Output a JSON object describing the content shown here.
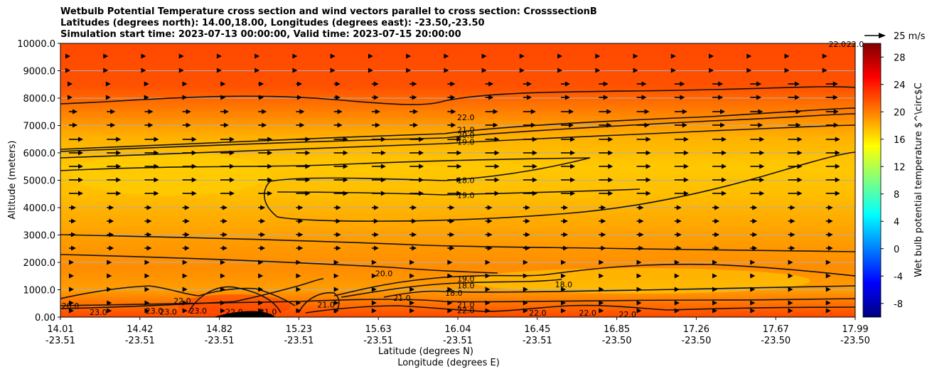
{
  "chart_data": {
    "type": "heatmap",
    "title_lines": [
      "Wetbulb Potential Temperature cross section and wind vectors parallel to cross section: CrosssectionB",
      "Latitudes (degrees north): 14.00,18.00, Longitudes (degrees east): -23.50,-23.50",
      "Simulation start time: 2023-07-13 00:00:00, Valid time: 2023-07-15 20:00:00"
    ],
    "ylabel": "Altitude (meters)",
    "xlabel_lat": "Latitude (degrees N)",
    "xlabel_lon": "Longitude (degrees E)",
    "ylim": [
      0,
      10000
    ],
    "yticks": [
      "0.00",
      "1000.0",
      "2000.0",
      "3000.0",
      "4000.0",
      "5000.0",
      "6000.0",
      "7000.0",
      "8000.0",
      "9000.0",
      "10000.0"
    ],
    "xticks": [
      {
        "lat": "14.01",
        "lon": "-23.51"
      },
      {
        "lat": "14.42",
        "lon": "-23.51"
      },
      {
        "lat": "14.82",
        "lon": "-23.51"
      },
      {
        "lat": "15.23",
        "lon": "-23.51"
      },
      {
        "lat": "15.63",
        "lon": "-23.51"
      },
      {
        "lat": "16.04",
        "lon": "-23.51"
      },
      {
        "lat": "16.45",
        "lon": "-23.51"
      },
      {
        "lat": "16.85",
        "lon": "-23.50"
      },
      {
        "lat": "17.26",
        "lon": "-23.50"
      },
      {
        "lat": "17.67",
        "lon": "-23.50"
      },
      {
        "lat": "17.99",
        "lon": "-23.50"
      }
    ],
    "colorbar": {
      "label": "Wet bulb potential temperature $^\\circ$C",
      "ticks": [
        "-8",
        "-4",
        "0",
        "4",
        "8",
        "12",
        "16",
        "20",
        "24",
        "28"
      ],
      "range": [
        -10,
        30
      ],
      "colors": [
        "#00007f",
        "#0000ff",
        "#007fff",
        "#00ffff",
        "#7fff7f",
        "#ffff00",
        "#ff7f00",
        "#ff0000",
        "#7f0000"
      ]
    },
    "quiver_key": "25 m/s",
    "contour_labels": [
      {
        "text": "22.0",
        "x": 16.04,
        "y": 7300
      },
      {
        "text": "21.0",
        "x": 16.04,
        "y": 6850
      },
      {
        "text": "20.0",
        "x": 16.04,
        "y": 6650
      },
      {
        "text": "19.0",
        "x": 16.04,
        "y": 6400
      },
      {
        "text": "18.0",
        "x": 16.04,
        "y": 5000
      },
      {
        "text": "19.0",
        "x": 16.04,
        "y": 4450
      },
      {
        "text": "19.0",
        "x": 16.04,
        "y": 1400
      },
      {
        "text": "18.0",
        "x": 16.04,
        "y": 1150
      },
      {
        "text": "18.0",
        "x": 15.98,
        "y": 880
      },
      {
        "text": "21.0",
        "x": 16.04,
        "y": 450
      },
      {
        "text": "22.0",
        "x": 16.04,
        "y": 250
      },
      {
        "text": "20.0",
        "x": 15.63,
        "y": 1600
      },
      {
        "text": "18.0",
        "x": 16.53,
        "y": 1200
      },
      {
        "text": "22.0",
        "x": 16.4,
        "y": 150
      },
      {
        "text": "22.0",
        "x": 16.65,
        "y": 150
      },
      {
        "text": "22.0",
        "x": 16.85,
        "y": 100
      },
      {
        "text": "22.0",
        "x": 17.9,
        "y": 9980
      },
      {
        "text": "22.0",
        "x": 17.99,
        "y": 9980
      },
      {
        "text": "20.0",
        "x": 14.06,
        "y": 420
      },
      {
        "text": "23.0",
        "x": 14.2,
        "y": 180
      },
      {
        "text": "23.0",
        "x": 14.48,
        "y": 230
      },
      {
        "text": "23.0",
        "x": 14.55,
        "y": 200
      },
      {
        "text": "22.0",
        "x": 14.62,
        "y": 600
      },
      {
        "text": "23.0",
        "x": 14.7,
        "y": 230
      },
      {
        "text": "22.0",
        "x": 14.88,
        "y": 200
      },
      {
        "text": "21.0",
        "x": 15.05,
        "y": 200
      },
      {
        "text": "21.0",
        "x": 15.34,
        "y": 450
      },
      {
        "text": "21.0",
        "x": 15.72,
        "y": 700
      }
    ]
  }
}
